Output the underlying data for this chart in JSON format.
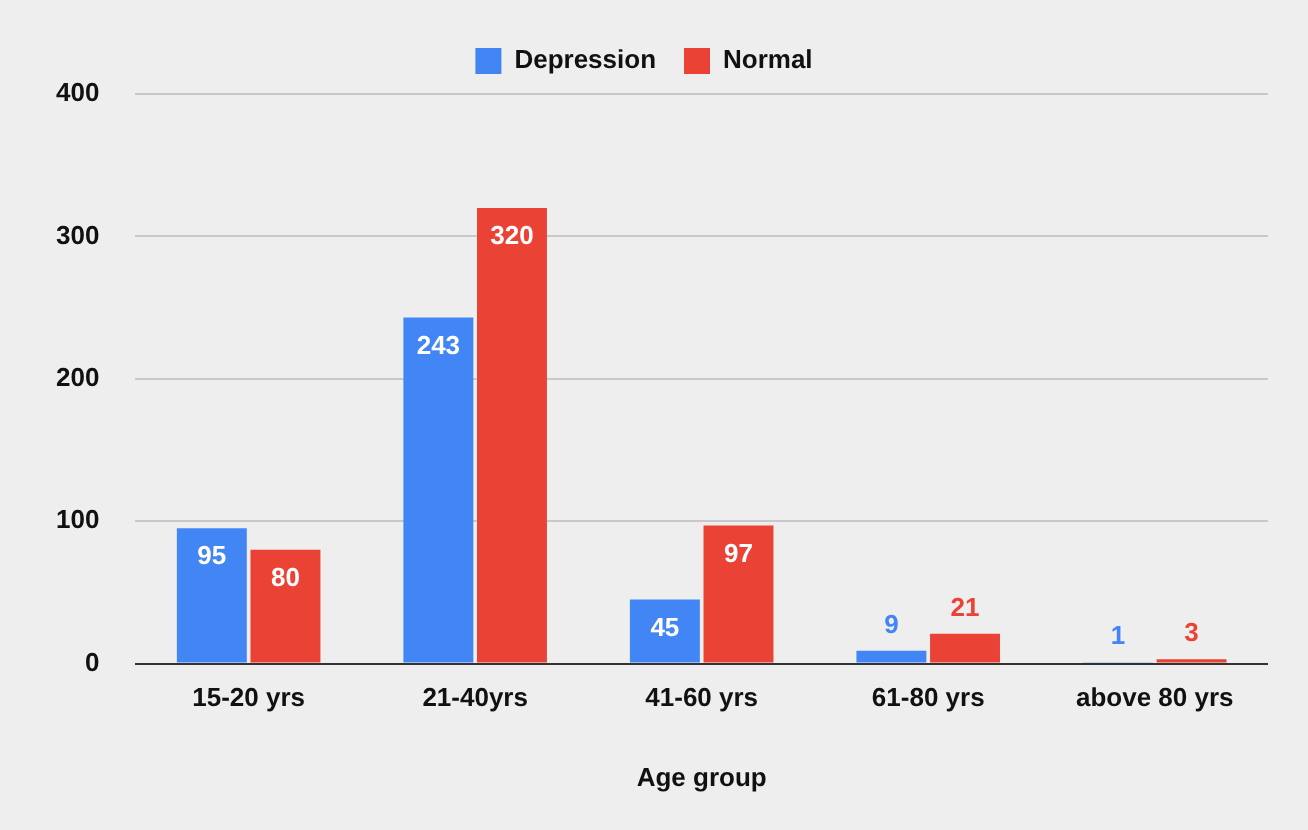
{
  "chart_data": {
    "type": "bar",
    "xlabel": "Age group",
    "categories": [
      "15-20 yrs",
      "21-40yrs",
      "41-60 yrs",
      "61-80 yrs",
      "above 80 yrs"
    ],
    "series": [
      {
        "name": "Depression",
        "color": "#4285f4",
        "values": [
          95,
          243,
          45,
          9,
          1
        ]
      },
      {
        "name": "Normal",
        "color": "#ea4335",
        "values": [
          80,
          320,
          97,
          21,
          3
        ]
      }
    ],
    "ylim": [
      0,
      400
    ],
    "yticks": [
      0,
      100,
      200,
      300,
      400
    ],
    "grid": "y",
    "legend": "top",
    "data_labels": true
  }
}
